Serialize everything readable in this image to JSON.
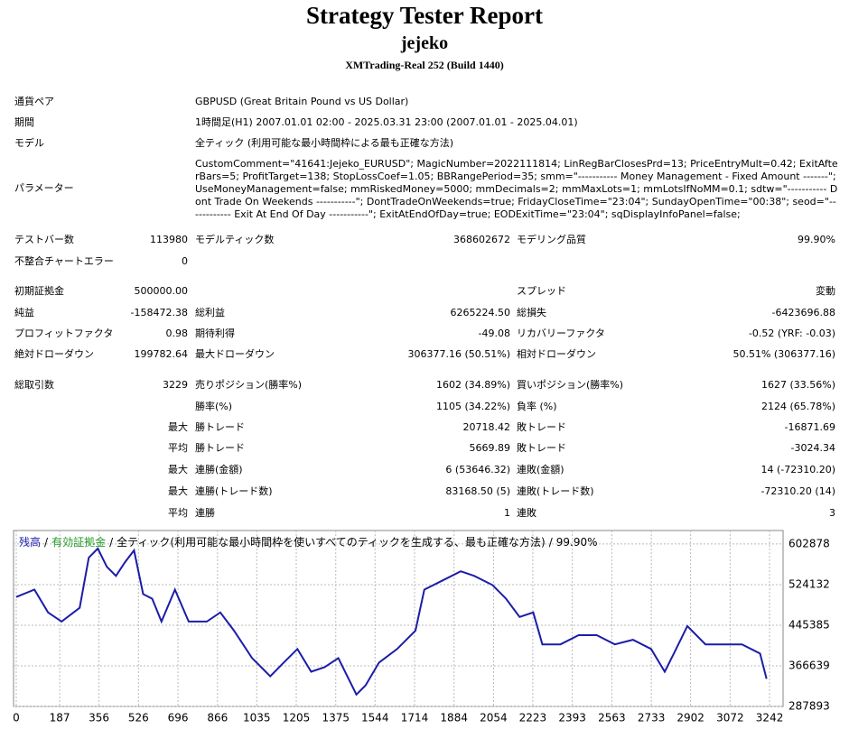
{
  "header": {
    "title": "Strategy Tester Report",
    "name": "jejeko",
    "server": "XMTrading-Real 252 (Build 1440)"
  },
  "info": [
    {
      "label": "通貨ペア",
      "value": "GBPUSD (Great Britain Pound vs US Dollar)"
    },
    {
      "label": "期間",
      "value": "1時間足(H1) 2007.01.01 02:00 - 2025.03.31 23:00 (2007.01.01 - 2025.04.01)"
    },
    {
      "label": "モデル",
      "value": "全ティック (利用可能な最小時間枠による最も正確な方法)"
    },
    {
      "label": "パラメーター",
      "value": "CustomComment=\"41641:Jejeko_EURUSD\"; MagicNumber=2022111814; LinRegBarClosesPrd=13; PriceEntryMult=0.42; ExitAfterBars=5; ProfitTarget=138; StopLossCoef=1.05; BBRangePeriod=35; smm=\"----------- Money Management - Fixed Amount -------\"; UseMoneyManagement=false; mmRiskedMoney=5000; mmDecimals=2; mmMaxLots=1; mmLotsIfNoMM=0.1; sdtw=\"----------- Dont Trade On Weekends -----------\"; DontTradeOnWeekends=true; FridayCloseTime=\"23:04\"; SundayOpenTime=\"00:38\"; seod=\"------------ Exit At End Of Day -----------\"; ExitAtEndOfDay=true; EODExitTime=\"23:04\"; sqDisplayInfoPanel=false;"
    }
  ],
  "rows": [
    [
      "テストバー数",
      "113980",
      "モデルティック数",
      "368602672",
      "モデリング品質",
      "99.90%"
    ],
    [
      "不整合チャートエラー",
      "0",
      null,
      null,
      null,
      null
    ],
    [
      "初期証拠金",
      "500000.00",
      null,
      null,
      "スプレッド",
      "変動"
    ],
    [
      "純益",
      "-158472.38",
      "総利益",
      "6265224.50",
      "総損失",
      "-6423696.88"
    ],
    [
      "プロフィットファクタ",
      "0.98",
      "期待利得",
      "-49.08",
      "リカバリーファクタ",
      "-0.52 (YRF: -0.03)"
    ],
    [
      "絶対ドローダウン",
      "199782.64",
      "最大ドローダウン",
      "306377.16 (50.51%)",
      "相対ドローダウン",
      "50.51% (306377.16)"
    ],
    [
      "総取引数",
      "3229",
      "売りポジション(勝率%)",
      "1602 (34.89%)",
      "買いポジション(勝率%)",
      "1627 (33.56%)"
    ],
    [
      null,
      null,
      "勝率(%)",
      "1105 (34.22%)",
      "負率 (%)",
      "2124 (65.78%)"
    ],
    [
      null,
      "最大",
      "勝トレード",
      "20718.42",
      "敗トレード",
      "-16871.69"
    ],
    [
      null,
      "平均",
      "勝トレード",
      "5669.89",
      "敗トレード",
      "-3024.34"
    ],
    [
      null,
      "最大",
      "連勝(金額)",
      "6 (53646.32)",
      "連敗(金額)",
      "14 (-72310.20)"
    ],
    [
      null,
      "最大",
      "連勝(トレード数)",
      "83168.50 (5)",
      "連敗(トレード数)",
      "-72310.20 (14)"
    ],
    [
      null,
      "平均",
      "連勝",
      "1",
      "連敗",
      "3"
    ]
  ],
  "chart_data": {
    "type": "line",
    "subtitle": "全ティック(利用可能な最小時間枠を使いすべてのティックを生成する、最も正確な方法)",
    "separator": "/",
    "quality": "99.90%",
    "x": [
      0,
      78,
      137,
      195,
      273,
      312,
      351,
      390,
      429,
      468,
      507,
      546,
      585,
      625,
      683,
      742,
      820,
      878,
      937,
      1015,
      1054,
      1093,
      1151,
      1210,
      1269,
      1327,
      1386,
      1464,
      1503,
      1561,
      1639,
      1718,
      1756,
      1835,
      1913,
      1971,
      2049,
      2108,
      2166,
      2225,
      2264,
      2342,
      2420,
      2498,
      2576,
      2654,
      2732,
      2791,
      2830,
      2888,
      2966,
      3044,
      3123,
      3201,
      3229
    ],
    "series": [
      {
        "name": "残高",
        "color": "#1c1ca8",
        "values": [
          500000,
          514500,
          470200,
          452500,
          479100,
          576400,
          594100,
          558700,
          541000,
          567600,
          590600,
          505600,
          496800,
          452500,
          514500,
          452500,
          452500,
          470200,
          434800,
          381700,
          364000,
          346300,
          372900,
          399400,
          355200,
          364000,
          381700,
          310900,
          328600,
          372900,
          399400,
          434800,
          514500,
          532200,
          549900,
          541000,
          523300,
          496800,
          461400,
          470200,
          408300,
          408300,
          426000,
          426000,
          408300,
          417100,
          399400,
          355200,
          390600,
          443700,
          408300,
          408300,
          408300,
          390600,
          341500
        ]
      },
      {
        "name": "有効証拠金",
        "color": "#2a9a2a"
      }
    ],
    "xlim": [
      0,
      3300
    ],
    "ylim": [
      287893,
      629000
    ],
    "xticks": [
      0,
      187,
      356,
      526,
      696,
      866,
      1035,
      1205,
      1375,
      1544,
      1714,
      1884,
      2054,
      2223,
      2393,
      2563,
      2733,
      2902,
      3072,
      3242
    ],
    "yticks": [
      287893,
      366639,
      445385,
      524132,
      602878
    ],
    "grid": true
  }
}
